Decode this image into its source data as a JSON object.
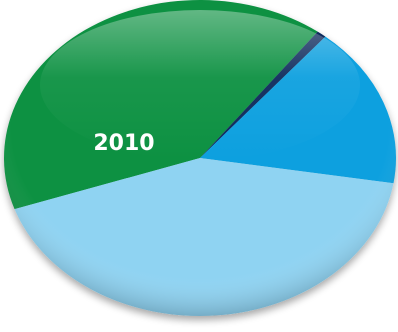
{
  "chart_data": {
    "type": "pie",
    "label": "2010",
    "slices": [
      {
        "value": 40.5,
        "color": "#0b9143"
      },
      {
        "value": 0.8,
        "color": "#0e2a5c"
      },
      {
        "value": 16.5,
        "color": "#0ca0df"
      },
      {
        "value": 42.2,
        "color": "#8fd3f2"
      }
    ]
  }
}
